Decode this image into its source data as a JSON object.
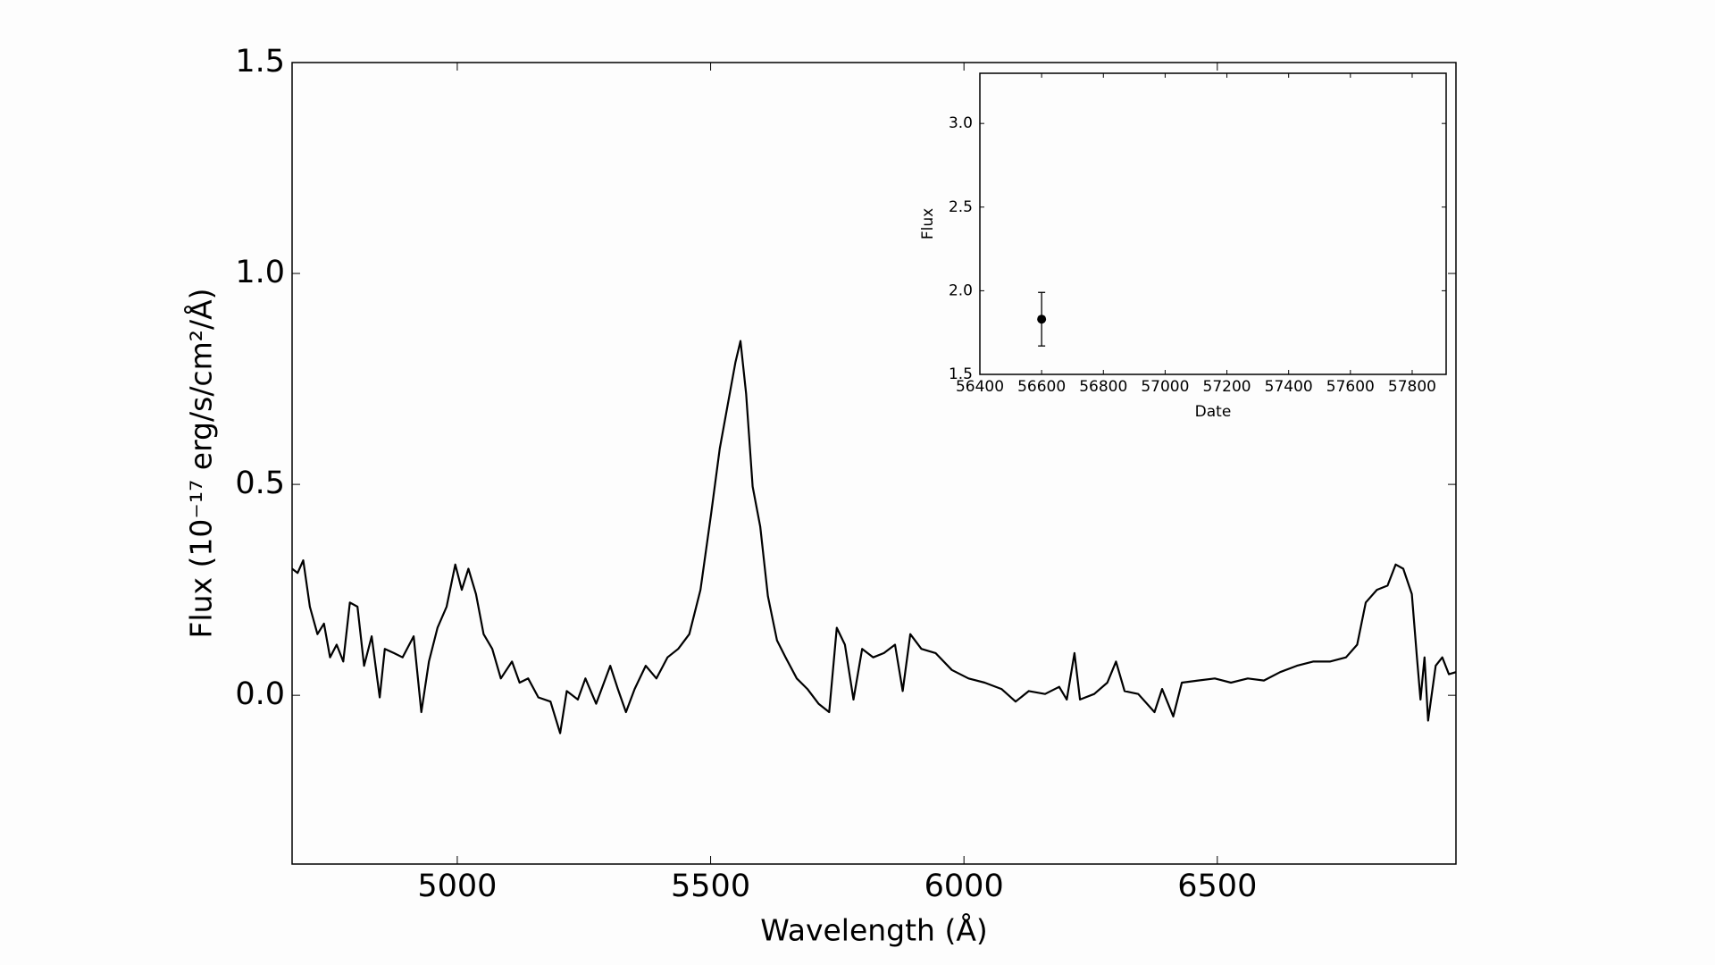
{
  "chart_data": [
    {
      "type": "line",
      "x_label": "Wavelength (Å)",
      "y_label": "Flux (10⁻¹⁷ erg/s/cm²/Å)",
      "color": "#000000",
      "xlim": [
        4674,
        6971
      ],
      "ylim": [
        -0.4,
        1.5
      ],
      "xticks": [
        5000,
        5500,
        6000,
        6500
      ],
      "yticks": [
        {
          "value": 0.0,
          "label": "0.0"
        },
        {
          "value": 0.5,
          "label": "0.5"
        },
        {
          "value": 1.0,
          "label": "1.0"
        },
        {
          "value": 1.5,
          "label": "1.5"
        }
      ],
      "x": [
        4674,
        4685,
        4696,
        4709,
        4724,
        4737,
        4749,
        4762,
        4775,
        4788,
        4803,
        4816,
        4831,
        4847,
        4857,
        4875,
        4892,
        4914,
        4929,
        4944,
        4961,
        4979,
        4996,
        5009,
        5022,
        5037,
        5052,
        5069,
        5086,
        5108,
        5123,
        5140,
        5160,
        5184,
        5203,
        5216,
        5238,
        5253,
        5274,
        5302,
        5317,
        5333,
        5350,
        5372,
        5393,
        5415,
        5436,
        5458,
        5480,
        5501,
        5518,
        5534,
        5549,
        5559,
        5570,
        5583,
        5598,
        5613,
        5631,
        5648,
        5670,
        5691,
        5713,
        5734,
        5749,
        5765,
        5782,
        5799,
        5821,
        5842,
        5864,
        5879,
        5894,
        5916,
        5944,
        5976,
        6009,
        6041,
        6074,
        6102,
        6128,
        6160,
        6188,
        6203,
        6218,
        6229,
        6257,
        6283,
        6300,
        6317,
        6344,
        6376,
        6391,
        6413,
        6430,
        6462,
        6495,
        6527,
        6560,
        6592,
        6624,
        6657,
        6689,
        6722,
        6754,
        6776,
        6793,
        6815,
        6836,
        6852,
        6867,
        6884,
        6894,
        6901,
        6909,
        6916,
        6931,
        6944,
        6957,
        6971
      ],
      "values": [
        0.3,
        0.29,
        0.32,
        0.21,
        0.145,
        0.17,
        0.09,
        0.12,
        0.08,
        0.22,
        0.21,
        0.07,
        0.14,
        -0.005,
        0.11,
        0.1,
        0.09,
        0.14,
        -0.04,
        0.08,
        0.16,
        0.21,
        0.31,
        0.25,
        0.3,
        0.24,
        0.145,
        0.11,
        0.04,
        0.08,
        0.03,
        0.04,
        -0.005,
        -0.015,
        -0.09,
        0.01,
        -0.01,
        0.04,
        -0.02,
        0.07,
        0.015,
        -0.04,
        0.015,
        0.07,
        0.04,
        0.09,
        0.11,
        0.145,
        0.25,
        0.43,
        0.585,
        0.69,
        0.79,
        0.84,
        0.715,
        0.495,
        0.4,
        0.235,
        0.13,
        0.09,
        0.04,
        0.015,
        -0.02,
        -0.04,
        0.16,
        0.12,
        -0.01,
        0.11,
        0.09,
        0.1,
        0.12,
        0.01,
        0.145,
        0.11,
        0.1,
        0.06,
        0.04,
        0.03,
        0.015,
        -0.015,
        0.01,
        0.003,
        0.02,
        -0.01,
        0.1,
        -0.01,
        0.003,
        0.03,
        0.08,
        0.01,
        0.003,
        -0.04,
        0.015,
        -0.05,
        0.03,
        0.035,
        0.04,
        0.03,
        0.04,
        0.035,
        0.055,
        0.07,
        0.08,
        0.08,
        0.09,
        0.12,
        0.22,
        0.25,
        0.26,
        0.31,
        0.3,
        0.24,
        0.09,
        -0.01,
        0.09,
        -0.06,
        0.07,
        0.09,
        0.05,
        0.055
      ]
    },
    {
      "type": "errorbar",
      "x_label": "Date",
      "y_label": "Flux",
      "color": "#000000",
      "xlim": [
        56400,
        57910
      ],
      "ylim": [
        1.5,
        3.3
      ],
      "xticks": [
        56400,
        56600,
        56800,
        57000,
        57200,
        57400,
        57600,
        57800
      ],
      "yticks": [
        {
          "value": 1.5,
          "label": "1.5"
        },
        {
          "value": 2.0,
          "label": "2.0"
        },
        {
          "value": 2.5,
          "label": "2.5"
        },
        {
          "value": 3.0,
          "label": "3.0"
        }
      ],
      "x": [
        56600
      ],
      "values": [
        1.83
      ],
      "errors": [
        0.16
      ]
    }
  ]
}
